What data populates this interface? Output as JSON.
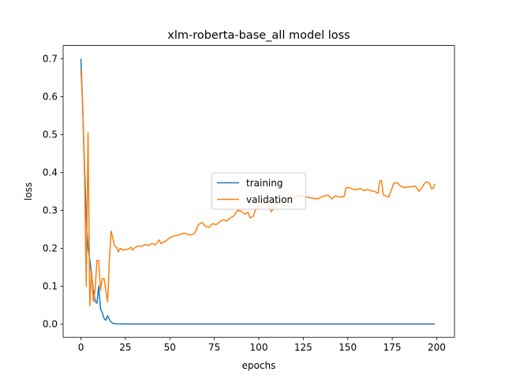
{
  "chart_data": {
    "type": "line",
    "title": "xlm-roberta-base_all model loss",
    "xlabel": "epochs",
    "ylabel": "loss",
    "xlim": [
      -10,
      210
    ],
    "ylim": [
      -0.035,
      0.735
    ],
    "xticks": [
      0,
      25,
      50,
      75,
      100,
      125,
      150,
      175,
      200
    ],
    "xtick_labels": [
      "0",
      "25",
      "50",
      "75",
      "100",
      "125",
      "150",
      "175",
      "200"
    ],
    "yticks": [
      0.0,
      0.1,
      0.2,
      0.3,
      0.4,
      0.5,
      0.6,
      0.7
    ],
    "ytick_labels": [
      "0.0",
      "0.1",
      "0.2",
      "0.3",
      "0.4",
      "0.5",
      "0.6",
      "0.7"
    ],
    "grid": false,
    "legend_position": "center-right",
    "series": [
      {
        "name": "training",
        "color": "#1f77b4",
        "points": [
          [
            0,
            0.7
          ],
          [
            1,
            0.57
          ],
          [
            2,
            0.42
          ],
          [
            3,
            0.28
          ],
          [
            4,
            0.2
          ],
          [
            5,
            0.17
          ],
          [
            6,
            0.13
          ],
          [
            7,
            0.09
          ],
          [
            8,
            0.06
          ],
          [
            9,
            0.055
          ],
          [
            10,
            0.1
          ],
          [
            11,
            0.04
          ],
          [
            12,
            0.03
          ],
          [
            13,
            0.015
          ],
          [
            14,
            0.01
          ],
          [
            15,
            0.022
          ],
          [
            16,
            0.012
          ],
          [
            17,
            0.005
          ],
          [
            18,
            0.002
          ],
          [
            19,
            0.001
          ],
          [
            20,
            0.0005
          ],
          [
            30,
            0.0
          ],
          [
            50,
            0.0
          ],
          [
            100,
            0.0
          ],
          [
            150,
            0.0
          ],
          [
            199,
            0.0
          ]
        ]
      },
      {
        "name": "validation",
        "color": "#ff7f0e",
        "points": [
          [
            0,
            0.67
          ],
          [
            1,
            0.58
          ],
          [
            2,
            0.4
          ],
          [
            3,
            0.1
          ],
          [
            4,
            0.505
          ],
          [
            5,
            0.048
          ],
          [
            6,
            0.14
          ],
          [
            7,
            0.06
          ],
          [
            8,
            0.09
          ],
          [
            9,
            0.168
          ],
          [
            10,
            0.168
          ],
          [
            11,
            0.09
          ],
          [
            12,
            0.12
          ],
          [
            13,
            0.12
          ],
          [
            14,
            0.09
          ],
          [
            15,
            0.058
          ],
          [
            16,
            0.17
          ],
          [
            17,
            0.245
          ],
          [
            18,
            0.225
          ],
          [
            19,
            0.205
          ],
          [
            20,
            0.203
          ],
          [
            21,
            0.19
          ],
          [
            22,
            0.2
          ],
          [
            23,
            0.197
          ],
          [
            24,
            0.195
          ],
          [
            25,
            0.197
          ],
          [
            27,
            0.198
          ],
          [
            28,
            0.203
          ],
          [
            29,
            0.195
          ],
          [
            30,
            0.2
          ],
          [
            32,
            0.206
          ],
          [
            34,
            0.205
          ],
          [
            36,
            0.21
          ],
          [
            38,
            0.207
          ],
          [
            40,
            0.213
          ],
          [
            42,
            0.209
          ],
          [
            44,
            0.222
          ],
          [
            45,
            0.212
          ],
          [
            46,
            0.215
          ],
          [
            48,
            0.22
          ],
          [
            50,
            0.228
          ],
          [
            52,
            0.232
          ],
          [
            55,
            0.235
          ],
          [
            58,
            0.24
          ],
          [
            60,
            0.237
          ],
          [
            62,
            0.235
          ],
          [
            64,
            0.24
          ],
          [
            66,
            0.262
          ],
          [
            68,
            0.268
          ],
          [
            70,
            0.258
          ],
          [
            72,
            0.255
          ],
          [
            74,
            0.265
          ],
          [
            76,
            0.262
          ],
          [
            78,
            0.27
          ],
          [
            80,
            0.275
          ],
          [
            82,
            0.272
          ],
          [
            84,
            0.28
          ],
          [
            86,
            0.285
          ],
          [
            88,
            0.3
          ],
          [
            90,
            0.298
          ],
          [
            92,
            0.29
          ],
          [
            94,
            0.295
          ],
          [
            95,
            0.28
          ],
          [
            97,
            0.285
          ],
          [
            98,
            0.3
          ],
          [
            100,
            0.31
          ],
          [
            102,
            0.318
          ],
          [
            104,
            0.32
          ],
          [
            106,
            0.31
          ],
          [
            107,
            0.296
          ],
          [
            108,
            0.303
          ],
          [
            110,
            0.32
          ],
          [
            112,
            0.325
          ],
          [
            115,
            0.33
          ],
          [
            118,
            0.335
          ],
          [
            120,
            0.33
          ],
          [
            122,
            0.34
          ],
          [
            125,
            0.338
          ],
          [
            127,
            0.335
          ],
          [
            130,
            0.332
          ],
          [
            133,
            0.33
          ],
          [
            135,
            0.335
          ],
          [
            137,
            0.338
          ],
          [
            139,
            0.34
          ],
          [
            141,
            0.33
          ],
          [
            143,
            0.338
          ],
          [
            146,
            0.335
          ],
          [
            148,
            0.337
          ],
          [
            149,
            0.36
          ],
          [
            151,
            0.36
          ],
          [
            153,
            0.355
          ],
          [
            155,
            0.355
          ],
          [
            157,
            0.358
          ],
          [
            159,
            0.352
          ],
          [
            161,
            0.355
          ],
          [
            163,
            0.352
          ],
          [
            165,
            0.35
          ],
          [
            167,
            0.345
          ],
          [
            168,
            0.378
          ],
          [
            169,
            0.378
          ],
          [
            170,
            0.34
          ],
          [
            172,
            0.337
          ],
          [
            173,
            0.335
          ],
          [
            175,
            0.36
          ],
          [
            176,
            0.373
          ],
          [
            178,
            0.372
          ],
          [
            180,
            0.363
          ],
          [
            182,
            0.36
          ],
          [
            184,
            0.362
          ],
          [
            186,
            0.362
          ],
          [
            188,
            0.364
          ],
          [
            190,
            0.35
          ],
          [
            191,
            0.355
          ],
          [
            193,
            0.37
          ],
          [
            194,
            0.375
          ],
          [
            196,
            0.372
          ],
          [
            197,
            0.357
          ],
          [
            198,
            0.358
          ],
          [
            199,
            0.37
          ]
        ]
      }
    ]
  }
}
